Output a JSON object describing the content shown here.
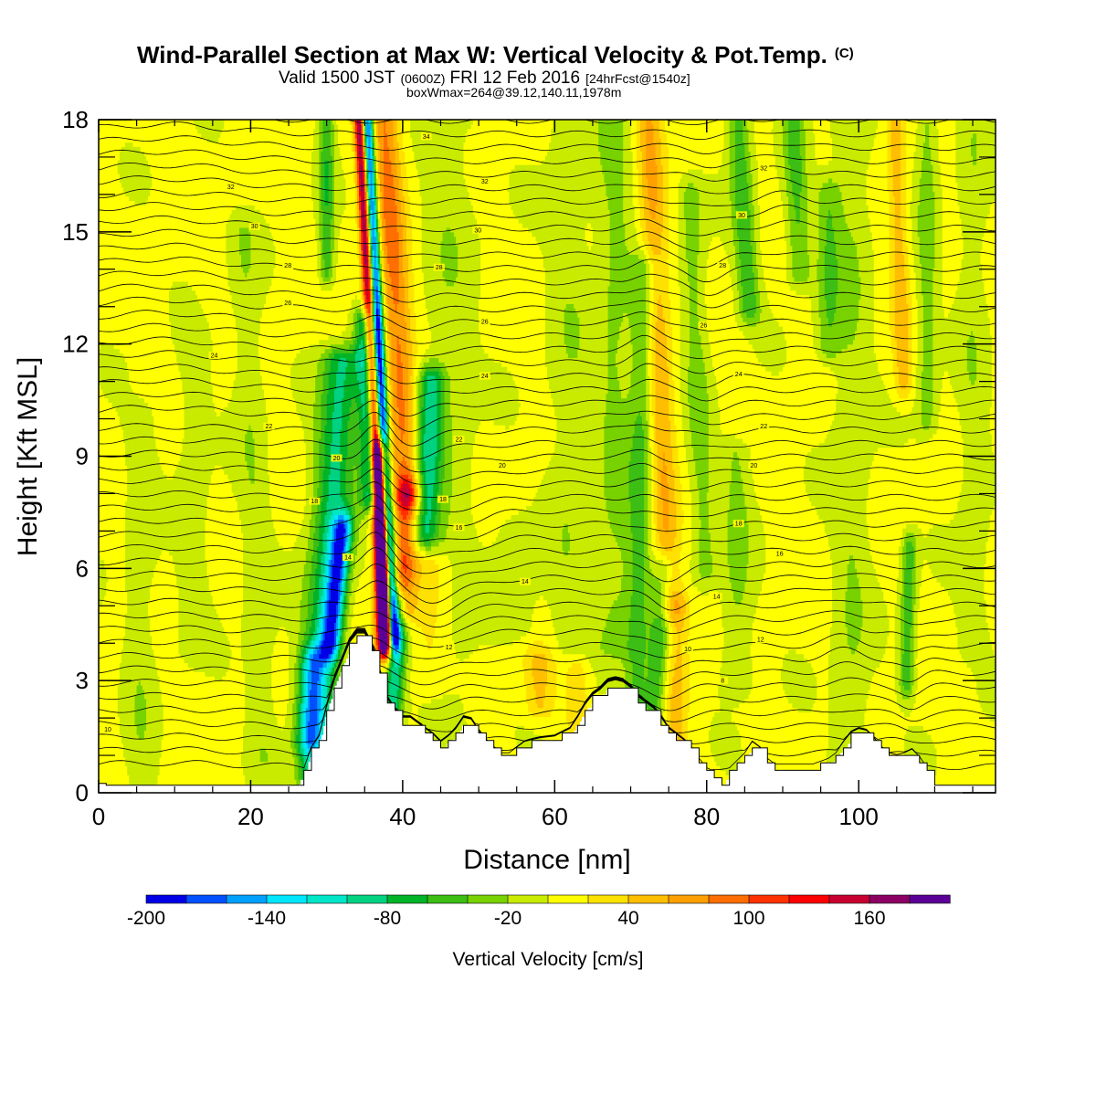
{
  "title": {
    "main": "Wind-Parallel Section at Max W: Vertical Velocity & Pot.Temp.",
    "copyright": "(C)",
    "valid_prefix": "Valid 1500 JST",
    "valid_utc": "(0600Z)",
    "valid_date": "FRI 12 Feb 2016",
    "forecast": "[24hrFcst@1540z]",
    "box": "boxWmax=264@39.12,140.11,1978m"
  },
  "chart_data": {
    "type": "heatmap",
    "xlabel": "Distance [nm]",
    "ylabel": "Height [Kft MSL]",
    "xlim": [
      0,
      118
    ],
    "ylim": [
      0,
      18
    ],
    "x_ticks": [
      "0",
      "20",
      "40",
      "60",
      "80",
      "100"
    ],
    "y_ticks": [
      "0",
      "3",
      "6",
      "9",
      "12",
      "15",
      "18"
    ],
    "colorbar": {
      "title": "Vertical Velocity [cm/s]",
      "tick_labels": [
        "-200",
        "-140",
        "-80",
        "-20",
        "40",
        "100",
        "160"
      ],
      "levels": [
        -200,
        -180,
        -160,
        -140,
        -120,
        -100,
        -80,
        -60,
        -40,
        -20,
        0,
        20,
        40,
        60,
        80,
        100,
        120,
        140,
        160,
        180,
        200
      ],
      "colors": [
        "#0000e6",
        "#0050ff",
        "#00a0ff",
        "#00e6ff",
        "#00e6c8",
        "#00d282",
        "#00b428",
        "#3cbe14",
        "#78d200",
        "#c8eb00",
        "#ffff00",
        "#ffe100",
        "#ffbe00",
        "#ffa000",
        "#ff6e00",
        "#ff3200",
        "#ff0000",
        "#c80032",
        "#8c0064",
        "#5a0096"
      ]
    },
    "terrain": [
      [
        0,
        0.25
      ],
      [
        2,
        0.25
      ],
      [
        4,
        0.25
      ],
      [
        6,
        0.25
      ],
      [
        8,
        0.25
      ],
      [
        10,
        0.25
      ],
      [
        12,
        0.25
      ],
      [
        14,
        0.25
      ],
      [
        16,
        0.25
      ],
      [
        18,
        0.25
      ],
      [
        20,
        0.25
      ],
      [
        22,
        0.25
      ],
      [
        24,
        0.25
      ],
      [
        26,
        0.25
      ],
      [
        27,
        0.55
      ],
      [
        28,
        1.1
      ],
      [
        29,
        1.4
      ],
      [
        30,
        2.2
      ],
      [
        31,
        2.9
      ],
      [
        32,
        3.4
      ],
      [
        33,
        3.9
      ],
      [
        34,
        4.15
      ],
      [
        35,
        4.15
      ],
      [
        36,
        3.75
      ],
      [
        37,
        3.1
      ],
      [
        38,
        2.4
      ],
      [
        39,
        2.1
      ],
      [
        40,
        1.9
      ],
      [
        41,
        1.9
      ],
      [
        42,
        1.75
      ],
      [
        43,
        1.6
      ],
      [
        44,
        1.45
      ],
      [
        45,
        1.25
      ],
      [
        46,
        1.4
      ],
      [
        47,
        1.6
      ],
      [
        48,
        1.9
      ],
      [
        49,
        1.85
      ],
      [
        50,
        1.55
      ],
      [
        51,
        1.3
      ],
      [
        52,
        1.1
      ],
      [
        53,
        0.95
      ],
      [
        54,
        0.95
      ],
      [
        55,
        1.1
      ],
      [
        56,
        1.25
      ],
      [
        57,
        1.3
      ],
      [
        58,
        1.35
      ],
      [
        60,
        1.4
      ],
      [
        62,
        1.6
      ],
      [
        63,
        1.9
      ],
      [
        64,
        2.25
      ],
      [
        65,
        2.5
      ],
      [
        66,
        2.65
      ],
      [
        67,
        2.85
      ],
      [
        68,
        2.9
      ],
      [
        69,
        2.85
      ],
      [
        70,
        2.7
      ],
      [
        71,
        2.45
      ],
      [
        72,
        2.3
      ],
      [
        73,
        2.15
      ],
      [
        74,
        1.9
      ],
      [
        75,
        1.6
      ],
      [
        76,
        1.45
      ],
      [
        77,
        1.3
      ],
      [
        78,
        1.1
      ],
      [
        79,
        0.8
      ],
      [
        80,
        0.55
      ],
      [
        81,
        0.35
      ],
      [
        82,
        0.25
      ],
      [
        83,
        0.55
      ],
      [
        84,
        0.75
      ],
      [
        85,
        0.95
      ],
      [
        86,
        1.25
      ],
      [
        87,
        1.1
      ],
      [
        88,
        0.8
      ],
      [
        89,
        0.65
      ],
      [
        90,
        0.65
      ],
      [
        92,
        0.65
      ],
      [
        94,
        0.65
      ],
      [
        96,
        0.8
      ],
      [
        97,
        0.95
      ],
      [
        98,
        1.25
      ],
      [
        99,
        1.5
      ],
      [
        100,
        1.6
      ],
      [
        101,
        1.55
      ],
      [
        102,
        1.35
      ],
      [
        103,
        1.1
      ],
      [
        104,
        0.95
      ],
      [
        105,
        0.9
      ],
      [
        106,
        0.95
      ],
      [
        107,
        1.05
      ],
      [
        108,
        0.85
      ],
      [
        109,
        0.55
      ],
      [
        110,
        0.3
      ],
      [
        112,
        0.25
      ],
      [
        114,
        0.25
      ],
      [
        116,
        0.25
      ],
      [
        118,
        0.25
      ]
    ],
    "theta_contour_labels": [
      "10",
      "12",
      "14",
      "16",
      "18",
      "20",
      "22",
      "24",
      "26",
      "28",
      "30",
      "32"
    ],
    "theta_label_points": [
      {
        "label": "32",
        "x": 17.4,
        "y": 16.2
      },
      {
        "label": "30",
        "x": 20.5,
        "y": 15.15
      },
      {
        "label": "28",
        "x": 24.9,
        "y": 14.1
      },
      {
        "label": "26",
        "x": 24.9,
        "y": 13.1
      },
      {
        "label": "24",
        "x": 15.2,
        "y": 11.7
      },
      {
        "label": "22",
        "x": 22.4,
        "y": 9.8
      },
      {
        "label": "20",
        "x": 31.3,
        "y": 8.95
      },
      {
        "label": "18",
        "x": 28.4,
        "y": 7.8
      },
      {
        "label": "14",
        "x": 32.8,
        "y": 6.3
      },
      {
        "label": "10",
        "x": 1.2,
        "y": 1.7
      },
      {
        "label": "34",
        "x": 43.1,
        "y": 17.55
      },
      {
        "label": "32",
        "x": 50.8,
        "y": 16.35
      },
      {
        "label": "30",
        "x": 49.9,
        "y": 15.05
      },
      {
        "label": "28",
        "x": 44.8,
        "y": 14.05
      },
      {
        "label": "26",
        "x": 50.8,
        "y": 12.6
      },
      {
        "label": "24",
        "x": 50.8,
        "y": 11.15
      },
      {
        "label": "22",
        "x": 47.4,
        "y": 9.45
      },
      {
        "label": "20",
        "x": 53.1,
        "y": 8.75
      },
      {
        "label": "18",
        "x": 45.3,
        "y": 7.85
      },
      {
        "label": "16",
        "x": 47.4,
        "y": 7.1
      },
      {
        "label": "14",
        "x": 56.1,
        "y": 5.65
      },
      {
        "label": "12",
        "x": 46.1,
        "y": 3.9
      },
      {
        "label": "32",
        "x": 87.5,
        "y": 16.7
      },
      {
        "label": "30",
        "x": 84.6,
        "y": 15.45
      },
      {
        "label": "28",
        "x": 82.1,
        "y": 14.1
      },
      {
        "label": "26",
        "x": 79.6,
        "y": 12.5
      },
      {
        "label": "24",
        "x": 84.2,
        "y": 11.2
      },
      {
        "label": "22",
        "x": 87.5,
        "y": 9.8
      },
      {
        "label": "20",
        "x": 86.2,
        "y": 8.75
      },
      {
        "label": "18",
        "x": 84.2,
        "y": 7.2
      },
      {
        "label": "16",
        "x": 89.6,
        "y": 6.4
      },
      {
        "label": "14",
        "x": 81.3,
        "y": 5.25
      },
      {
        "label": "12",
        "x": 87.1,
        "y": 4.1
      },
      {
        "label": "10",
        "x": 77.5,
        "y": 3.85
      },
      {
        "label": "8",
        "x": 82.1,
        "y": 3.0
      }
    ],
    "w_features": [
      {
        "x": 37.3,
        "ylo": 4.3,
        "yhi": 18,
        "w": -220,
        "sx": 0.8,
        "tilt": -0.25
      },
      {
        "x": 36.4,
        "ylo": 4.3,
        "yhi": 18,
        "w": 200,
        "sx": 0.75,
        "tilt": -0.25
      },
      {
        "x": 36.9,
        "ylo": 4.0,
        "yhi": 9,
        "w": 200,
        "sx": 1.0,
        "tilt": -0.1
      },
      {
        "x": 33.5,
        "ylo": 4.0,
        "yhi": 7,
        "w": -140,
        "sx": 1.3,
        "tilt": 0.5
      },
      {
        "x": 31.5,
        "ylo": 1.5,
        "yhi": 11.5,
        "w": -90,
        "sx": 2.6,
        "tilt": 0.35
      },
      {
        "x": 29.5,
        "ylo": 0.5,
        "yhi": 3.5,
        "w": -90,
        "sx": 1.6,
        "tilt": 0.2
      },
      {
        "x": 35.5,
        "ylo": 8,
        "yhi": 12.5,
        "w": -100,
        "sx": 1.4,
        "tilt": -0.15
      },
      {
        "x": 40.0,
        "ylo": 8,
        "yhi": 18,
        "w": 80,
        "sx": 2.0,
        "tilt": -0.3
      },
      {
        "x": 41.0,
        "ylo": 5,
        "yhi": 8,
        "w": 90,
        "sx": 1.6,
        "tilt": 0.2
      },
      {
        "x": 43.5,
        "ylo": 7,
        "yhi": 11,
        "w": -90,
        "sx": 1.8,
        "tilt": 0.2
      },
      {
        "x": 41.0,
        "ylo": 2,
        "yhi": 5,
        "w": -100,
        "sx": 1.3,
        "tilt": 0.3
      },
      {
        "x": 44.5,
        "ylo": 3,
        "yhi": 6,
        "w": 30,
        "sx": 2.8,
        "tilt": 0.1
      },
      {
        "x": 46.0,
        "ylo": 0.8,
        "yhi": 18,
        "w": -20,
        "sx": 3.5,
        "tilt": 0.0
      },
      {
        "x": 30.0,
        "ylo": 14,
        "yhi": 18,
        "w": -60,
        "sx": 1.0,
        "tilt": 0.0
      },
      {
        "x": 20.0,
        "ylo": 1,
        "yhi": 15,
        "w": -22,
        "sx": 2.0,
        "tilt": -0.2
      },
      {
        "x": 12.5,
        "ylo": 4,
        "yhi": 12,
        "w": -20,
        "sx": 2.0,
        "tilt": 0.0
      },
      {
        "x": 5.5,
        "ylo": 0.3,
        "yhi": 10,
        "w": -20,
        "sx": 2.0,
        "tilt": 0.0
      },
      {
        "x": 58.0,
        "ylo": 2.4,
        "yhi": 3.5,
        "w": 40,
        "sx": 2.0,
        "tilt": 0.0
      },
      {
        "x": 63.0,
        "ylo": 2.0,
        "yhi": 3.2,
        "w": 30,
        "sx": 1.5,
        "tilt": 0.0
      },
      {
        "x": 55.0,
        "ylo": 4.5,
        "yhi": 7,
        "w": -20,
        "sx": 3.0,
        "tilt": 0.0
      },
      {
        "x": 62.0,
        "ylo": 4,
        "yhi": 18,
        "w": -20,
        "sx": 3.0,
        "tilt": 0.0
      },
      {
        "x": 68.0,
        "ylo": 4,
        "yhi": 18,
        "w": -30,
        "sx": 2.5,
        "tilt": 0.0
      },
      {
        "x": 71.5,
        "ylo": 2.5,
        "yhi": 14,
        "w": -50,
        "sx": 1.6,
        "tilt": 0.1
      },
      {
        "x": 74.0,
        "ylo": 5,
        "yhi": 18,
        "w": 55,
        "sx": 1.7,
        "tilt": -0.2
      },
      {
        "x": 75.5,
        "ylo": 1,
        "yhi": 6,
        "w": -60,
        "sx": 1.4,
        "tilt": 0.3
      },
      {
        "x": 77.5,
        "ylo": 1,
        "yhi": 5,
        "w": 40,
        "sx": 1.5,
        "tilt": 0.2
      },
      {
        "x": 79.0,
        "ylo": 6,
        "yhi": 16,
        "w": -35,
        "sx": 1.6,
        "tilt": -0.2
      },
      {
        "x": 86.5,
        "ylo": 13,
        "yhi": 18,
        "w": -60,
        "sx": 1.5,
        "tilt": -0.3
      },
      {
        "x": 84.0,
        "ylo": 3,
        "yhi": 9,
        "w": -30,
        "sx": 2.0,
        "tilt": 0.0
      },
      {
        "x": 93.0,
        "ylo": 14,
        "yhi": 18,
        "w": -50,
        "sx": 1.5,
        "tilt": -0.2
      },
      {
        "x": 96.0,
        "ylo": 12,
        "yhi": 16,
        "w": -40,
        "sx": 1.6,
        "tilt": 0.0
      },
      {
        "x": 99.0,
        "ylo": 0.5,
        "yhi": 18,
        "w": -25,
        "sx": 2.5,
        "tilt": 0.0
      },
      {
        "x": 106.0,
        "ylo": 11,
        "yhi": 18,
        "w": 45,
        "sx": 1.2,
        "tilt": -0.15
      },
      {
        "x": 107.0,
        "ylo": 3,
        "yhi": 6.5,
        "w": -60,
        "sx": 1.0,
        "tilt": 0.1
      },
      {
        "x": 109.0,
        "ylo": 10,
        "yhi": 18,
        "w": -35,
        "sx": 1.4,
        "tilt": 0.0
      },
      {
        "x": 115.0,
        "ylo": 4,
        "yhi": 18,
        "w": -20,
        "sx": 2.0,
        "tilt": 0.0
      }
    ]
  }
}
